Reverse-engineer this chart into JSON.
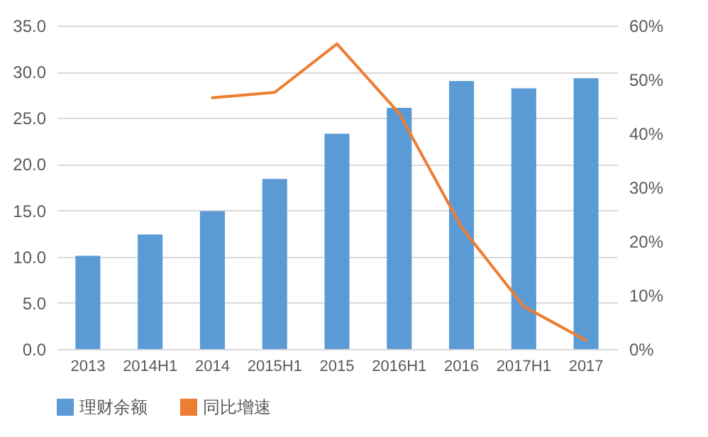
{
  "chart_data": {
    "type": "bar",
    "categories": [
      "2013",
      "2014H1",
      "2014",
      "2015H1",
      "2015",
      "2016H1",
      "2016",
      "2017H1",
      "2017"
    ],
    "series": [
      {
        "name": "理财余额",
        "color": "#5b9bd5",
        "values": [
          10.1,
          12.4,
          14.9,
          18.4,
          23.3,
          26.1,
          29.0,
          28.2,
          29.3
        ]
      },
      {
        "name": "同比增速",
        "type": "line",
        "axis": "y2",
        "color": "#ed7d31",
        "values": [
          null,
          null,
          46.6,
          47.6,
          56.6,
          43.7,
          22.6,
          7.9,
          1.6
        ]
      }
    ],
    "ylim": [
      0,
      35
    ],
    "yticks": [
      {
        "value": 0,
        "label": "0.0"
      },
      {
        "value": 5,
        "label": "5.0"
      },
      {
        "value": 10,
        "label": "10.0"
      },
      {
        "value": 15,
        "label": "15.0"
      },
      {
        "value": 20,
        "label": "20.0"
      },
      {
        "value": 25,
        "label": "25.0"
      },
      {
        "value": 30,
        "label": "30.0"
      },
      {
        "value": 35,
        "label": "35.0"
      }
    ],
    "y2lim": [
      0,
      60
    ],
    "y2ticks": [
      {
        "value": 0,
        "label": "0%"
      },
      {
        "value": 10,
        "label": "10%"
      },
      {
        "value": 20,
        "label": "20%"
      },
      {
        "value": 30,
        "label": "30%"
      },
      {
        "value": 40,
        "label": "40%"
      },
      {
        "value": 50,
        "label": "50%"
      },
      {
        "value": 60,
        "label": "60%"
      }
    ],
    "grid": "y",
    "legend": "bottom"
  }
}
